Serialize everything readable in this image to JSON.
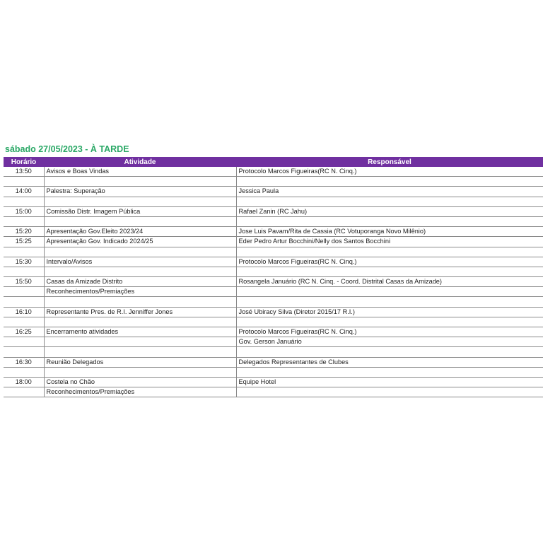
{
  "title": "sábado 27/05/2023 - À TARDE",
  "colors": {
    "header_bg": "#7030a0",
    "title": "#2aa866"
  },
  "columns": [
    "Horário",
    "Atividade",
    "Responsável"
  ],
  "rows": [
    {
      "time": "13:50",
      "activity": "Avisos e Boas Vindas",
      "responsible": "Protocolo Marcos Figueiras(RC N. Cinq.)"
    },
    {
      "time": "",
      "activity": "",
      "responsible": ""
    },
    {
      "time": "14:00",
      "activity": "Palestra: Superação",
      "responsible": "Jessica Paula"
    },
    {
      "time": "",
      "activity": "",
      "responsible": ""
    },
    {
      "time": "15:00",
      "activity": "Comissão Distr. Imagem Pública",
      "responsible": "Rafael Zanin (RC Jahu)"
    },
    {
      "time": "",
      "activity": "",
      "responsible": ""
    },
    {
      "time": "15:20",
      "activity": "Apresentação Gov.Eleito 2023/24",
      "responsible": "Jose Luis Pavam/Rita de Cassia (RC Votuporanga Novo Milênio)"
    },
    {
      "time": "15:25",
      "activity": "Apresentação Gov. Indicado 2024/25",
      "responsible": "Eder Pedro Artur Bocchini/Nelly dos Santos Bocchini"
    },
    {
      "time": "",
      "activity": "",
      "responsible": ""
    },
    {
      "time": "15:30",
      "activity": "Intervalo/Avisos",
      "responsible": "Protocolo Marcos Figueiras(RC N. Cinq.)"
    },
    {
      "time": "",
      "activity": "",
      "responsible": ""
    },
    {
      "time": "15:50",
      "activity": "Casas da Amizade Distrito",
      "responsible": "Rosangela Januário (RC N. Cinq. - Coord. Distrital Casas da Amizade)"
    },
    {
      "time": "",
      "activity": "Reconhecimentos/Premiações",
      "responsible": ""
    },
    {
      "time": "",
      "activity": "",
      "responsible": ""
    },
    {
      "time": "16:10",
      "activity": "Representante Pres. de R.I. Jenniffer Jones",
      "responsible": "José Ubiracy Silva (Diretor 2015/17 R.I.)"
    },
    {
      "time": "",
      "activity": "",
      "responsible": ""
    },
    {
      "time": "16:25",
      "activity": "Encerramento atividades",
      "responsible": "Protocolo Marcos Figueiras(RC N. Cinq.)"
    },
    {
      "time": "",
      "activity": "",
      "responsible": "Gov. Gerson Januário"
    },
    {
      "time": "",
      "activity": "",
      "responsible": ""
    },
    {
      "time": "16:30",
      "activity": "Reunião Delegados",
      "responsible": "Delegados Representantes de Clubes"
    },
    {
      "time": "",
      "activity": "",
      "responsible": ""
    },
    {
      "time": "18:00",
      "activity": "Costela no Chão",
      "responsible": "Equipe Hotel"
    },
    {
      "time": "",
      "activity": "Reconhecimentos/Premiações",
      "responsible": ""
    }
  ]
}
